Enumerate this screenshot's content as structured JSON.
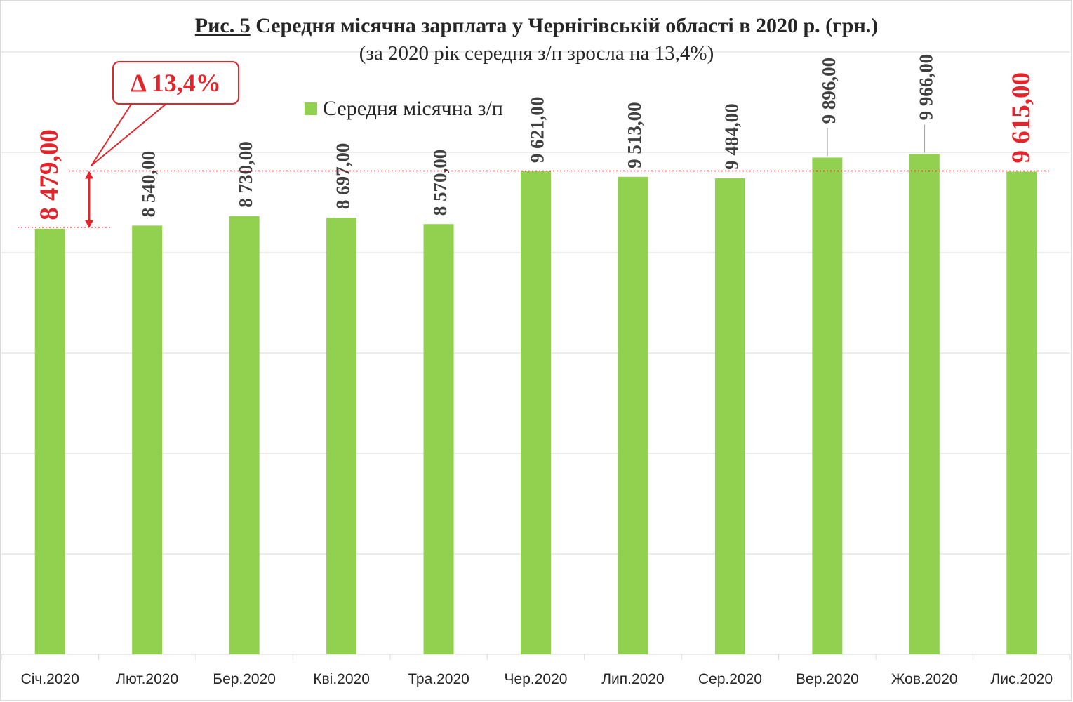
{
  "title": {
    "figure_ref": "Рис. 5",
    "text": "Середня місячна зарплата у Чернігівській області в 2020 р. (грн.)",
    "subtitle": "(за 2020 рік середня з/п зросла на 13,4%)"
  },
  "callout": {
    "text": "Δ 13,4%"
  },
  "legend": {
    "label": "Середня місячна з/п"
  },
  "colors": {
    "bar": "#92d050",
    "label": "#404040",
    "highlight": "#e3242b",
    "grid": "#d9d9d9",
    "axis_text": "#262626"
  },
  "chart_data": {
    "type": "bar",
    "title": "Середня місячна зарплата у Чернігівській області в 2020 р. (грн.)",
    "subtitle": "(за 2020 рік середня з/п зросла на 13,4%)",
    "categories": [
      "Січ.2020",
      "Лют.2020",
      "Бер.2020",
      "Кві.2020",
      "Тра.2020",
      "Чер.2020",
      "Лип.2020",
      "Сер.2020",
      "Вер.2020",
      "Жов.2020",
      "Лис.2020"
    ],
    "series": [
      {
        "name": "Середня місячна з/п",
        "values": [
          8479,
          8540,
          8730,
          8697,
          8570,
          9621,
          9513,
          9484,
          9896,
          9966,
          9615
        ],
        "labels": [
          "8 479,00",
          "8 540,00",
          "8 730,00",
          "8 697,00",
          "8 570,00",
          "9 621,00",
          "9 513,00",
          "9 484,00",
          "9 896,00",
          "9 966,00",
          "9 615,00"
        ]
      }
    ],
    "highlighted_categories": [
      "Січ.2020",
      "Лис.2020"
    ],
    "ylim": [
      0,
      12000
    ],
    "grid": true,
    "y_tick_labels_shown": false,
    "legend_position": "top",
    "annotation": {
      "text": "Δ 13,4%",
      "from": 8479,
      "to": 9615
    }
  }
}
